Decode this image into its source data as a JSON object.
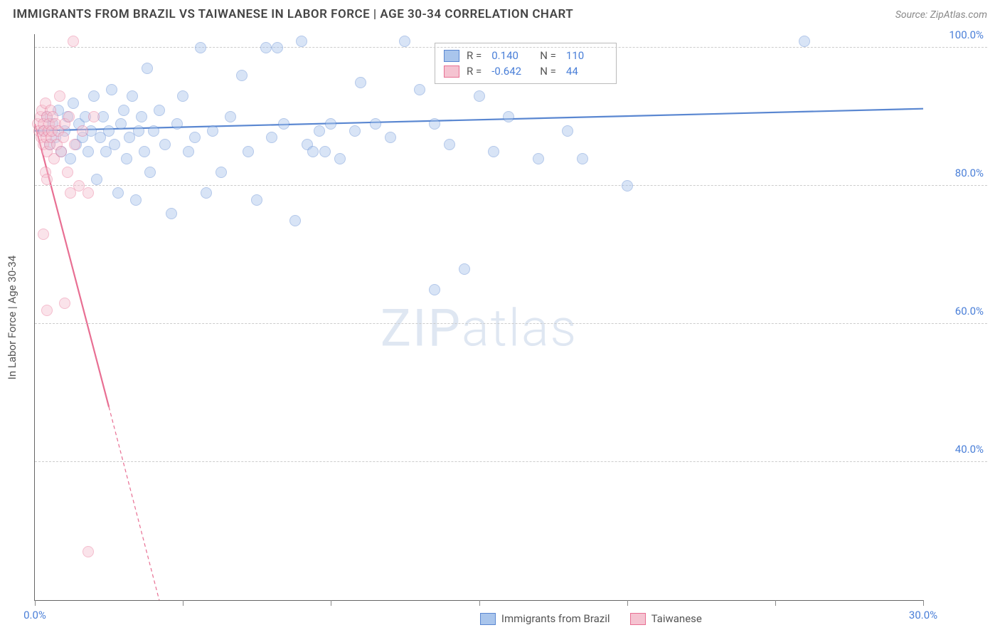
{
  "title_text": "IMMIGRANTS FROM BRAZIL VS TAIWANESE IN LABOR FORCE | AGE 30-34 CORRELATION CHART",
  "source_text": "Source: ZipAtlas.com",
  "watermark_a": "ZIP",
  "watermark_b": "atlas",
  "chart": {
    "type": "scatter",
    "xlim": [
      0,
      30
    ],
    "ylim": [
      20,
      102
    ],
    "xticks": [
      0,
      5,
      10,
      15,
      20,
      25,
      30
    ],
    "xlabels_show": [
      0,
      30
    ],
    "yticks": [
      40,
      60,
      80,
      100
    ],
    "ytick_labels": [
      "40.0%",
      "60.0%",
      "80.0%",
      "100.0%"
    ],
    "xtick_labels": {
      "0": "0.0%",
      "30": "30.0%"
    },
    "y_axis_title": "In Labor Force | Age 30-34",
    "grid_color": "#cccccc",
    "axis_color": "#666666",
    "label_color": "#4a7fd8",
    "background_color": "#ffffff",
    "marker_radius": 8,
    "marker_opacity": 0.45,
    "marker_border_width": 1.2,
    "series": [
      {
        "name": "Immigrants from Brazil",
        "color_fill": "#a9c5ec",
        "color_stroke": "#5a87d1",
        "r_label": "R =",
        "r_value": "0.140",
        "n_label": "N =",
        "n_value": "110",
        "trend": {
          "x1": 0,
          "y1": 88.0,
          "x2": 30,
          "y2": 91.2,
          "width": 2.2,
          "dash": "none"
        },
        "points": [
          [
            0.3,
            88
          ],
          [
            0.4,
            90
          ],
          [
            0.5,
            86
          ],
          [
            0.6,
            89
          ],
          [
            0.7,
            87
          ],
          [
            0.8,
            91
          ],
          [
            0.9,
            85
          ],
          [
            1.0,
            88
          ],
          [
            1.1,
            90
          ],
          [
            1.2,
            84
          ],
          [
            1.3,
            92
          ],
          [
            1.4,
            86
          ],
          [
            1.5,
            89
          ],
          [
            1.6,
            87
          ],
          [
            1.7,
            90
          ],
          [
            1.8,
            85
          ],
          [
            1.9,
            88
          ],
          [
            2.0,
            93
          ],
          [
            2.1,
            81
          ],
          [
            2.2,
            87
          ],
          [
            2.3,
            90
          ],
          [
            2.4,
            85
          ],
          [
            2.5,
            88
          ],
          [
            2.6,
            94
          ],
          [
            2.7,
            86
          ],
          [
            2.8,
            79
          ],
          [
            2.9,
            89
          ],
          [
            3.0,
            91
          ],
          [
            3.1,
            84
          ],
          [
            3.2,
            87
          ],
          [
            3.3,
            93
          ],
          [
            3.4,
            78
          ],
          [
            3.5,
            88
          ],
          [
            3.6,
            90
          ],
          [
            3.7,
            85
          ],
          [
            3.8,
            97
          ],
          [
            3.9,
            82
          ],
          [
            4.0,
            88
          ],
          [
            4.2,
            91
          ],
          [
            4.4,
            86
          ],
          [
            4.6,
            76
          ],
          [
            4.8,
            89
          ],
          [
            5.0,
            93
          ],
          [
            5.2,
            85
          ],
          [
            5.4,
            87
          ],
          [
            5.6,
            100
          ],
          [
            5.8,
            79
          ],
          [
            6.0,
            88
          ],
          [
            6.3,
            82
          ],
          [
            6.6,
            90
          ],
          [
            7.0,
            96
          ],
          [
            7.2,
            85
          ],
          [
            7.5,
            78
          ],
          [
            7.8,
            100
          ],
          [
            8.0,
            87
          ],
          [
            8.2,
            100
          ],
          [
            8.4,
            89
          ],
          [
            8.8,
            75
          ],
          [
            9.0,
            101
          ],
          [
            9.2,
            86
          ],
          [
            9.4,
            85
          ],
          [
            9.6,
            88
          ],
          [
            9.8,
            85
          ],
          [
            10.0,
            89
          ],
          [
            10.3,
            84
          ],
          [
            10.8,
            88
          ],
          [
            11.0,
            95
          ],
          [
            11.5,
            89
          ],
          [
            12.0,
            87
          ],
          [
            12.5,
            101
          ],
          [
            13.0,
            94
          ],
          [
            13.5,
            89
          ],
          [
            13.5,
            65
          ],
          [
            14.0,
            86
          ],
          [
            14.5,
            68
          ],
          [
            15.0,
            93
          ],
          [
            15.5,
            85
          ],
          [
            16.0,
            90
          ],
          [
            17.0,
            84
          ],
          [
            18.0,
            88
          ],
          [
            18.5,
            84
          ],
          [
            20.0,
            80
          ],
          [
            26.0,
            101
          ]
        ]
      },
      {
        "name": "Taiwanese",
        "color_fill": "#f5c3d1",
        "color_stroke": "#e86f93",
        "r_label": "R =",
        "r_value": "-0.642",
        "n_label": "N =",
        "n_value": "44",
        "trend": {
          "x1": 0,
          "y1": 89.0,
          "x2": 2.5,
          "y2": 48.0,
          "width": 2.2,
          "dash": "none"
        },
        "trend_ext": {
          "x1": 2.5,
          "y1": 48.0,
          "x2": 4.2,
          "y2": 20.0,
          "width": 1.2,
          "dash": "5,4"
        },
        "points": [
          [
            0.1,
            89
          ],
          [
            0.15,
            88
          ],
          [
            0.2,
            90
          ],
          [
            0.22,
            87
          ],
          [
            0.25,
            91
          ],
          [
            0.28,
            86
          ],
          [
            0.3,
            89
          ],
          [
            0.32,
            88
          ],
          [
            0.35,
            92
          ],
          [
            0.38,
            87
          ],
          [
            0.4,
            90
          ],
          [
            0.42,
            85
          ],
          [
            0.45,
            88
          ],
          [
            0.48,
            89
          ],
          [
            0.5,
            86
          ],
          [
            0.52,
            91
          ],
          [
            0.55,
            87
          ],
          [
            0.58,
            88
          ],
          [
            0.6,
            90
          ],
          [
            0.65,
            84
          ],
          [
            0.7,
            89
          ],
          [
            0.75,
            86
          ],
          [
            0.8,
            88
          ],
          [
            0.85,
            93
          ],
          [
            0.9,
            85
          ],
          [
            0.95,
            87
          ],
          [
            1.0,
            89
          ],
          [
            1.1,
            82
          ],
          [
            1.15,
            90
          ],
          [
            1.2,
            79
          ],
          [
            1.3,
            101
          ],
          [
            1.35,
            86
          ],
          [
            1.5,
            80
          ],
          [
            1.6,
            88
          ],
          [
            1.8,
            79
          ],
          [
            2.0,
            90
          ],
          [
            0.3,
            73
          ],
          [
            0.35,
            82
          ],
          [
            0.4,
            81
          ],
          [
            0.4,
            62
          ],
          [
            1.0,
            63
          ],
          [
            1.8,
            27
          ]
        ]
      }
    ]
  },
  "legend_bottom": [
    {
      "label": "Immigrants from Brazil",
      "fill": "#a9c5ec",
      "stroke": "#5a87d1"
    },
    {
      "label": "Taiwanese",
      "fill": "#f5c3d1",
      "stroke": "#e86f93"
    }
  ]
}
